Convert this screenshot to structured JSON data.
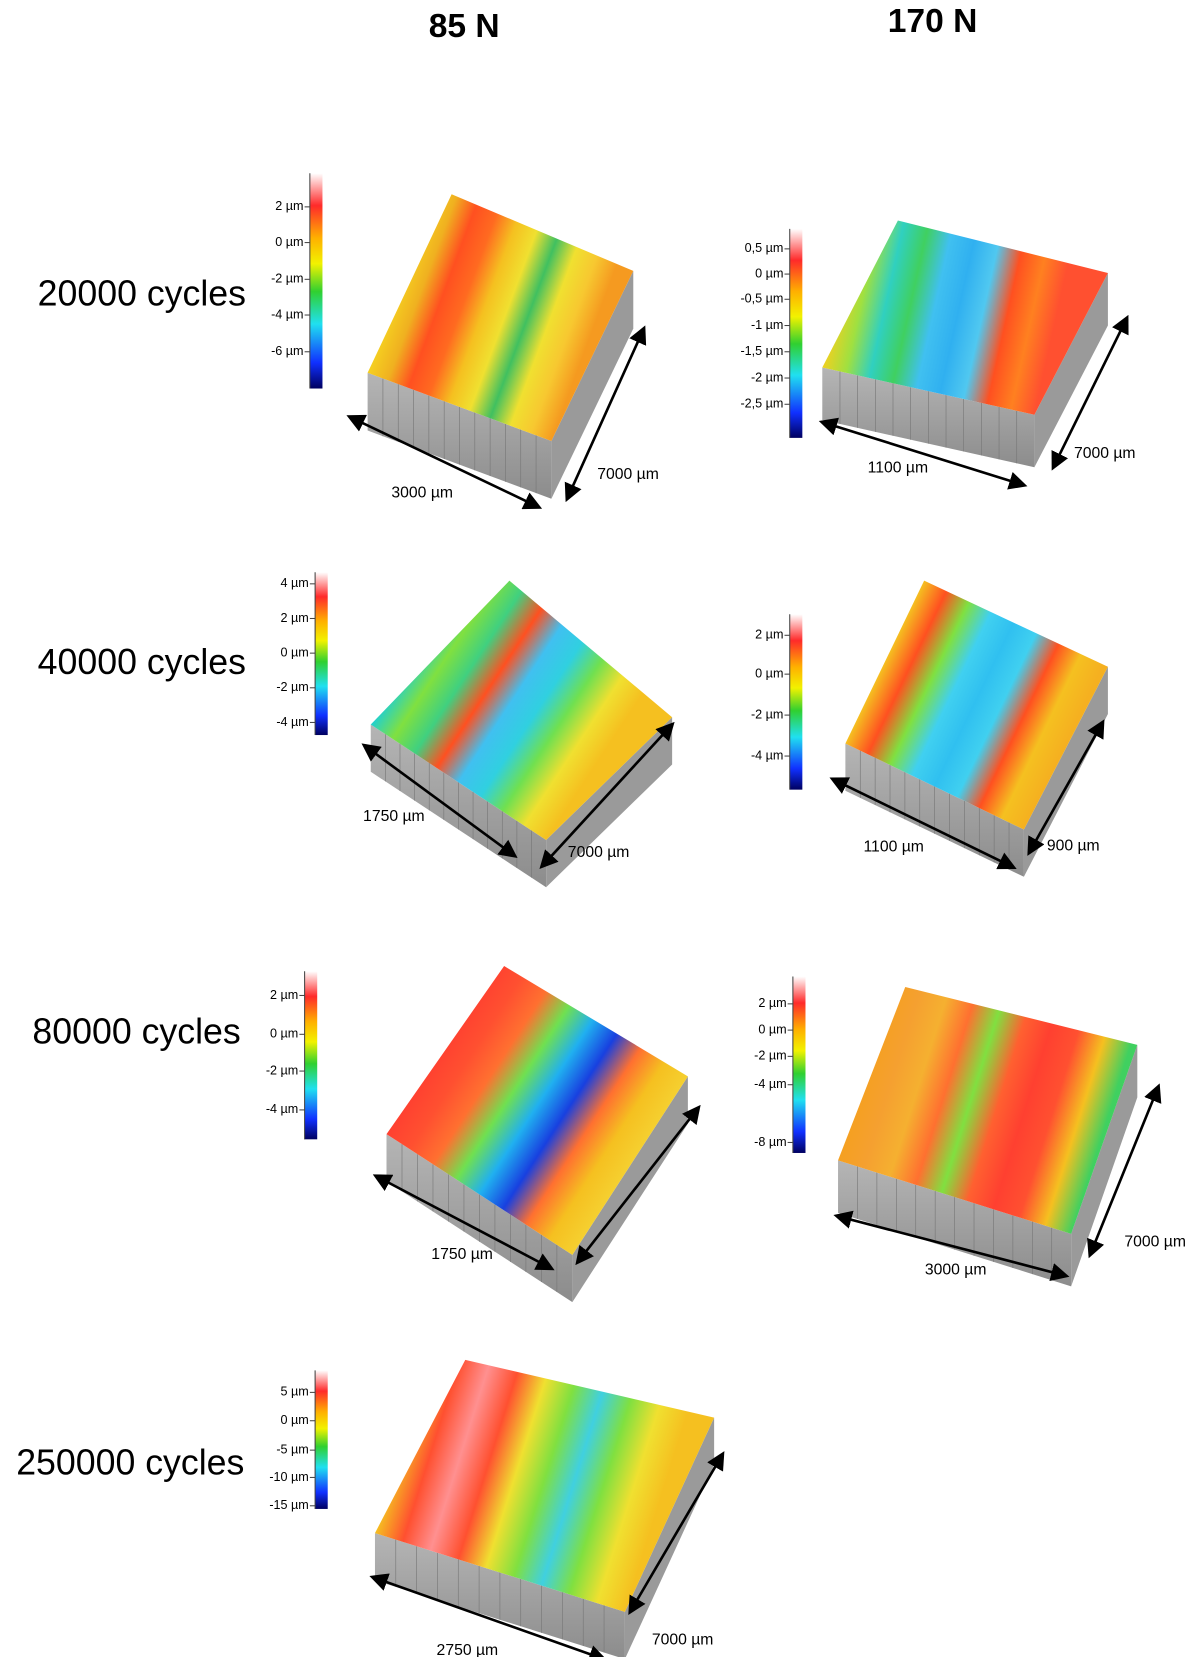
{
  "columns": [
    "85 N",
    "170 N"
  ],
  "rows": [
    "20000 cycles",
    "40000 cycles",
    "80000 cycles",
    "250000 cycles"
  ],
  "panels": [
    {
      "colorbar_ticks": [
        "2 µm",
        "0 µm",
        "-2 µm",
        "-4 µm",
        "-6 µm"
      ],
      "width_label": "3000 µm",
      "length_label": "7000 µm"
    },
    {
      "colorbar_ticks": [
        "0,5 µm",
        "0 µm",
        "-0,5 µm",
        "-1 µm",
        "-1,5 µm",
        "-2 µm",
        "-2,5 µm"
      ],
      "width_label": "1100 µm",
      "length_label": "7000 µm"
    },
    {
      "colorbar_ticks": [
        "4 µm",
        "2 µm",
        "0 µm",
        "-2 µm",
        "-4 µm"
      ],
      "width_label": "1750 µm",
      "length_label": "7000 µm"
    },
    {
      "colorbar_ticks": [
        "2 µm",
        "0 µm",
        "-2 µm",
        "-4 µm"
      ],
      "width_label": "1100 µm",
      "length_label": "900 µm"
    },
    {
      "colorbar_ticks": [
        "2 µm",
        "0 µm",
        "-2 µm",
        "-4 µm"
      ],
      "width_label": "1750 µm"
    },
    {
      "colorbar_ticks": [
        "2 µm",
        "0 µm",
        "-2 µm",
        "-4 µm",
        "-8 µm"
      ],
      "width_label": "3000 µm",
      "length_label": "7000 µm"
    },
    {
      "colorbar_ticks": [
        "5 µm",
        "0 µm",
        "-5 µm",
        "-10 µm",
        "-15 µm"
      ],
      "width_label": "2750 µm",
      "length_label": "7000 µm"
    }
  ]
}
